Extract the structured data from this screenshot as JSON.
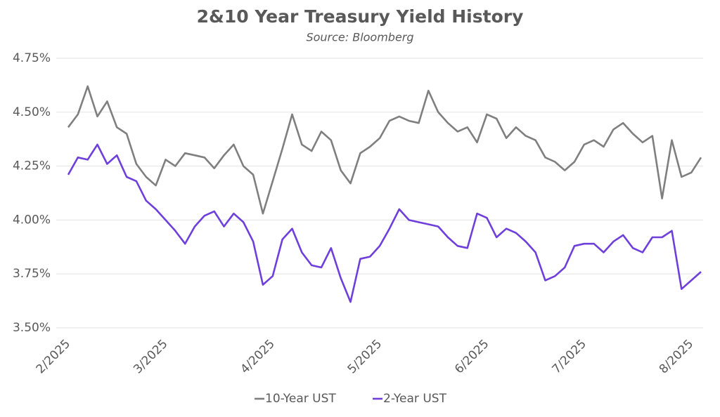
{
  "chart_data": {
    "type": "line",
    "title": "2&10 Year Treasury Yield History",
    "subtitle": "Source: Bloomberg",
    "categories": [
      "2/2025",
      null,
      null,
      null,
      null,
      null,
      null,
      null,
      null,
      null,
      "3/2025",
      null,
      null,
      null,
      null,
      null,
      null,
      null,
      null,
      null,
      null,
      "4/2025",
      null,
      null,
      null,
      null,
      null,
      null,
      null,
      null,
      null,
      null,
      "5/2025",
      null,
      null,
      null,
      null,
      null,
      null,
      null,
      null,
      null,
      null,
      "6/2025",
      null,
      null,
      null,
      null,
      null,
      null,
      null,
      null,
      null,
      "7/2025",
      null,
      null,
      null,
      null,
      null,
      null,
      null,
      null,
      null,
      null,
      "8/2025",
      null
    ],
    "series": [
      {
        "name": "10-Year UST",
        "color": "#7f7f7f",
        "values": [
          4.43,
          4.49,
          4.62,
          4.48,
          4.55,
          4.43,
          4.4,
          4.26,
          4.2,
          4.16,
          4.28,
          4.25,
          4.31,
          4.3,
          4.29,
          4.24,
          4.3,
          4.35,
          4.25,
          4.21,
          4.03,
          4.18,
          4.33,
          4.49,
          4.35,
          4.32,
          4.41,
          4.37,
          4.23,
          4.17,
          4.31,
          4.34,
          4.38,
          4.46,
          4.48,
          4.46,
          4.45,
          4.6,
          4.5,
          4.45,
          4.41,
          4.43,
          4.36,
          4.49,
          4.47,
          4.38,
          4.43,
          4.39,
          4.37,
          4.29,
          4.27,
          4.23,
          4.27,
          4.35,
          4.37,
          4.34,
          4.42,
          4.45,
          4.4,
          4.36,
          4.39,
          4.1,
          4.37,
          4.2,
          4.22,
          4.29
        ]
      },
      {
        "name": "2-Year UST",
        "color": "#6e3fdb",
        "values": [
          4.21,
          4.29,
          4.28,
          4.35,
          4.26,
          4.3,
          4.2,
          4.18,
          4.09,
          4.05,
          4.0,
          3.95,
          3.89,
          3.97,
          4.02,
          4.04,
          3.97,
          4.03,
          3.99,
          3.9,
          3.7,
          3.74,
          3.91,
          3.96,
          3.85,
          3.79,
          3.78,
          3.87,
          3.73,
          3.62,
          3.82,
          3.83,
          3.88,
          3.96,
          4.05,
          4.0,
          3.99,
          3.98,
          3.97,
          3.92,
          3.88,
          3.87,
          4.03,
          4.01,
          3.92,
          3.96,
          3.94,
          3.9,
          3.85,
          3.72,
          3.74,
          3.78,
          3.88,
          3.89,
          3.89,
          3.85,
          3.9,
          3.93,
          3.87,
          3.85,
          3.92,
          3.92,
          3.95,
          3.68,
          3.72,
          3.76
        ]
      }
    ],
    "ylim": [
      3.5,
      4.75
    ],
    "yticks": [
      {
        "value": 3.5,
        "label": "3.50%"
      },
      {
        "value": 3.75,
        "label": "3.75%"
      },
      {
        "value": 4.0,
        "label": "4.00%"
      },
      {
        "value": 4.25,
        "label": "4.25%"
      },
      {
        "value": 4.5,
        "label": "4.50%"
      },
      {
        "value": 4.75,
        "label": "4.75%"
      }
    ],
    "grid": true,
    "legend": "bottom"
  }
}
